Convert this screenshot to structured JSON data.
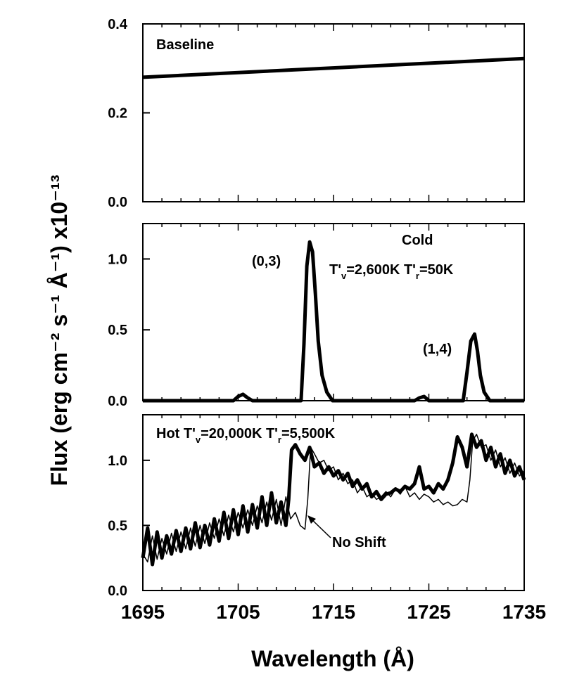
{
  "chart_data": [
    {
      "type": "line",
      "panel": "top",
      "annotations": [
        {
          "text": "Baseline"
        }
      ],
      "ylim": [
        0.0,
        0.4
      ],
      "y_ticks": [
        "0.0",
        "0.2",
        "0.4"
      ],
      "series": [
        {
          "style": "thick",
          "x": [
            1695,
            1735
          ],
          "values": [
            0.28,
            0.322
          ]
        }
      ]
    },
    {
      "type": "line",
      "panel": "middle",
      "annotations": [
        {
          "text": "Cold"
        },
        {
          "text": "T'v=2,600K T'r=50K"
        },
        {
          "text": "(0,3)"
        },
        {
          "text": "(1,4)"
        }
      ],
      "ylim": [
        0.0,
        1.25
      ],
      "y_ticks": [
        "0.0",
        "0.5",
        "1.0"
      ],
      "series": [
        {
          "style": "thick",
          "x": [
            1695,
            1704.5,
            1705.0,
            1705.5,
            1706.0,
            1706.5,
            1711.6,
            1711.9,
            1712.2,
            1712.5,
            1712.8,
            1713.1,
            1713.4,
            1713.8,
            1714.3,
            1714.9,
            1723.5,
            1724.0,
            1724.5,
            1725.0,
            1728.6,
            1729.0,
            1729.4,
            1729.8,
            1730.1,
            1730.4,
            1730.8,
            1731.4,
            1735
          ],
          "values": [
            0.0,
            0.0,
            0.03,
            0.045,
            0.02,
            0.0,
            0.0,
            0.4,
            0.95,
            1.12,
            1.05,
            0.75,
            0.42,
            0.18,
            0.06,
            0.0,
            0.0,
            0.02,
            0.03,
            0.0,
            0.0,
            0.2,
            0.42,
            0.47,
            0.35,
            0.18,
            0.06,
            0.0,
            0.0
          ]
        }
      ]
    },
    {
      "type": "line",
      "panel": "bottom",
      "annotations": [
        {
          "text": "Hot T'v=20,000K T'r=5,500K"
        },
        {
          "text": "No Shift"
        }
      ],
      "ylim": [
        0.0,
        1.35
      ],
      "y_ticks": [
        "0.0",
        "0.5",
        "1.0"
      ],
      "x_ticks": [
        "1695",
        "1705",
        "1715",
        "1725",
        "1735"
      ],
      "xlim": [
        1695,
        1735
      ],
      "xlabel": "Wavelength (Å)",
      "ylabel": "Flux (erg cm⁻² s⁻¹ Å⁻¹) x10⁻¹³",
      "series": [
        {
          "style": "thick",
          "x": [
            1695,
            1695.5,
            1696,
            1696.5,
            1697,
            1697.5,
            1698,
            1698.5,
            1699,
            1699.5,
            1700,
            1700.5,
            1701,
            1701.5,
            1702,
            1702.5,
            1703,
            1703.5,
            1704,
            1704.5,
            1705,
            1705.5,
            1706,
            1706.5,
            1707,
            1707.5,
            1708,
            1708.5,
            1709,
            1709.5,
            1710,
            1710.3,
            1710.6,
            1711,
            1711.5,
            1712,
            1712.5,
            1713,
            1713.5,
            1714,
            1714.5,
            1715,
            1715.5,
            1716,
            1716.5,
            1717,
            1717.5,
            1718,
            1718.5,
            1719,
            1719.5,
            1720,
            1720.5,
            1721,
            1721.5,
            1722,
            1722.5,
            1723,
            1723.5,
            1724,
            1724.5,
            1725,
            1725.5,
            1726,
            1726.5,
            1727,
            1727.5,
            1728,
            1728.5,
            1729,
            1729.5,
            1730,
            1730.5,
            1731,
            1731.5,
            1732,
            1732.5,
            1733,
            1733.5,
            1734,
            1734.5,
            1735
          ],
          "values": [
            0.25,
            0.48,
            0.2,
            0.45,
            0.25,
            0.42,
            0.28,
            0.46,
            0.3,
            0.48,
            0.32,
            0.52,
            0.33,
            0.5,
            0.35,
            0.55,
            0.38,
            0.6,
            0.4,
            0.62,
            0.43,
            0.65,
            0.45,
            0.66,
            0.48,
            0.72,
            0.5,
            0.75,
            0.52,
            0.68,
            0.5,
            0.7,
            1.08,
            1.12,
            1.05,
            1.0,
            1.1,
            0.95,
            0.98,
            0.9,
            0.95,
            0.88,
            0.92,
            0.85,
            0.9,
            0.8,
            0.85,
            0.78,
            0.82,
            0.72,
            0.76,
            0.7,
            0.74,
            0.75,
            0.78,
            0.76,
            0.8,
            0.78,
            0.82,
            0.95,
            0.78,
            0.8,
            0.75,
            0.82,
            0.78,
            0.85,
            0.98,
            1.18,
            1.1,
            0.95,
            1.2,
            1.1,
            1.15,
            1.0,
            1.1,
            0.95,
            1.05,
            0.9,
            1.0,
            0.88,
            0.95,
            0.85
          ]
        },
        {
          "style": "thin",
          "x": [
            1695,
            1695.5,
            1696,
            1696.5,
            1697,
            1697.5,
            1698,
            1698.5,
            1699,
            1699.5,
            1700,
            1700.5,
            1701,
            1701.5,
            1702,
            1702.5,
            1703,
            1703.5,
            1704,
            1704.5,
            1705,
            1705.5,
            1706,
            1706.5,
            1707,
            1707.5,
            1708,
            1708.5,
            1709,
            1709.5,
            1710,
            1710.5,
            1711,
            1711.5,
            1712,
            1712.3,
            1712.6,
            1713,
            1713.5,
            1714,
            1714.5,
            1715,
            1715.5,
            1716,
            1716.5,
            1717,
            1717.5,
            1718,
            1718.5,
            1719,
            1719.5,
            1720,
            1720.5,
            1721,
            1721.5,
            1722,
            1722.5,
            1723,
            1723.5,
            1724,
            1724.5,
            1725,
            1725.5,
            1726,
            1726.5,
            1727,
            1727.5,
            1728,
            1728.5,
            1729,
            1729.3,
            1729.6,
            1730,
            1730.5,
            1731,
            1731.5,
            1732,
            1732.5,
            1733,
            1733.5,
            1734,
            1734.5,
            1735
          ],
          "values": [
            0.28,
            0.22,
            0.42,
            0.24,
            0.4,
            0.28,
            0.44,
            0.3,
            0.45,
            0.32,
            0.48,
            0.34,
            0.5,
            0.36,
            0.52,
            0.4,
            0.55,
            0.42,
            0.58,
            0.45,
            0.6,
            0.48,
            0.62,
            0.5,
            0.65,
            0.52,
            0.68,
            0.54,
            0.7,
            0.5,
            0.72,
            0.55,
            0.6,
            0.5,
            0.47,
            0.7,
            1.1,
            1.05,
            0.98,
            1.0,
            0.92,
            0.95,
            0.85,
            0.9,
            0.82,
            0.85,
            0.75,
            0.8,
            0.72,
            0.75,
            0.7,
            0.72,
            0.76,
            0.72,
            0.78,
            0.74,
            0.8,
            0.72,
            0.75,
            0.7,
            0.74,
            0.72,
            0.68,
            0.7,
            0.66,
            0.68,
            0.65,
            0.66,
            0.7,
            0.68,
            0.85,
            1.15,
            1.2,
            1.1,
            1.12,
            1.0,
            1.08,
            0.95,
            1.02,
            0.9,
            0.98,
            0.88,
            0.92
          ]
        }
      ]
    }
  ]
}
